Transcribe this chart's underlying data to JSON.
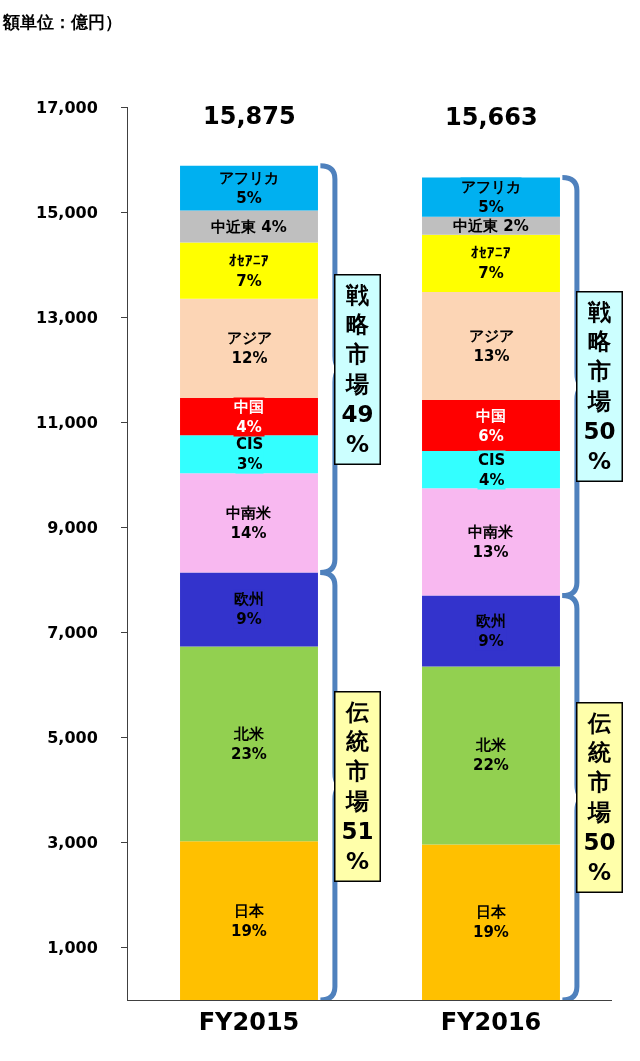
{
  "chart_data": {
    "type": "bar",
    "stacked": true,
    "categories": [
      "FY2015",
      "FY2016"
    ],
    "series": [
      {
        "name": "日本",
        "color": "#ffc000",
        "values": [
          3020,
          2960
        ]
      },
      {
        "name": "北米",
        "color": "#92d050",
        "values": [
          3710,
          3390
        ]
      },
      {
        "name": "欧州",
        "color": "#3333cc",
        "values": [
          1410,
          1350
        ]
      },
      {
        "name": "中南米",
        "color": "#f8b8f0",
        "values": [
          1890,
          2040
        ]
      },
      {
        "name": "CIS",
        "color": "#33ffff",
        "values": [
          720,
          710
        ]
      },
      {
        "name": "中国",
        "color": "#ff0000",
        "values": [
          710,
          970
        ]
      },
      {
        "name": "アジア",
        "color": "#fcd5b5",
        "values": [
          1890,
          2060
        ]
      },
      {
        "name": "ｵｾｱﾆｱ",
        "color": "#ffff00",
        "values": [
          1070,
          1090
        ]
      },
      {
        "name": "中近東",
        "color": "#bfbfbf",
        "values": [
          610,
          340
        ]
      },
      {
        "name": "アフリカ",
        "color": "#00b0f0",
        "values": [
          850,
          750
        ]
      }
    ],
    "totals": [
      "15,875",
      "15,663"
    ],
    "ylim": [
      0,
      17000
    ],
    "yticks": [
      {
        "value": 1000,
        "label": "1,000"
      },
      {
        "value": 3000,
        "label": "3,000"
      },
      {
        "value": 5000,
        "label": "5,000"
      },
      {
        "value": 7000,
        "label": "7,000"
      },
      {
        "value": 9000,
        "label": "9,000"
      },
      {
        "value": 11000,
        "label": "11,000"
      },
      {
        "value": 13000,
        "label": "13,000"
      },
      {
        "value": 15000,
        "label": "15,000"
      },
      {
        "value": 17000,
        "label": "17,000"
      }
    ],
    "grid": false,
    "legend": false,
    "annotations": [
      "額単位：億円）",
      "戦略市場49%",
      "伝統市場51%",
      "戦略市場50%",
      "伝統市場50%",
      "19%",
      "19%",
      "23%",
      "22%",
      "9%",
      "9%",
      "14%",
      "13%",
      "3%",
      "4%",
      "4%",
      "6%",
      "12%",
      "13%",
      "7%",
      "7%",
      "4%",
      "2%",
      "5%",
      "5%"
    ]
  }
}
